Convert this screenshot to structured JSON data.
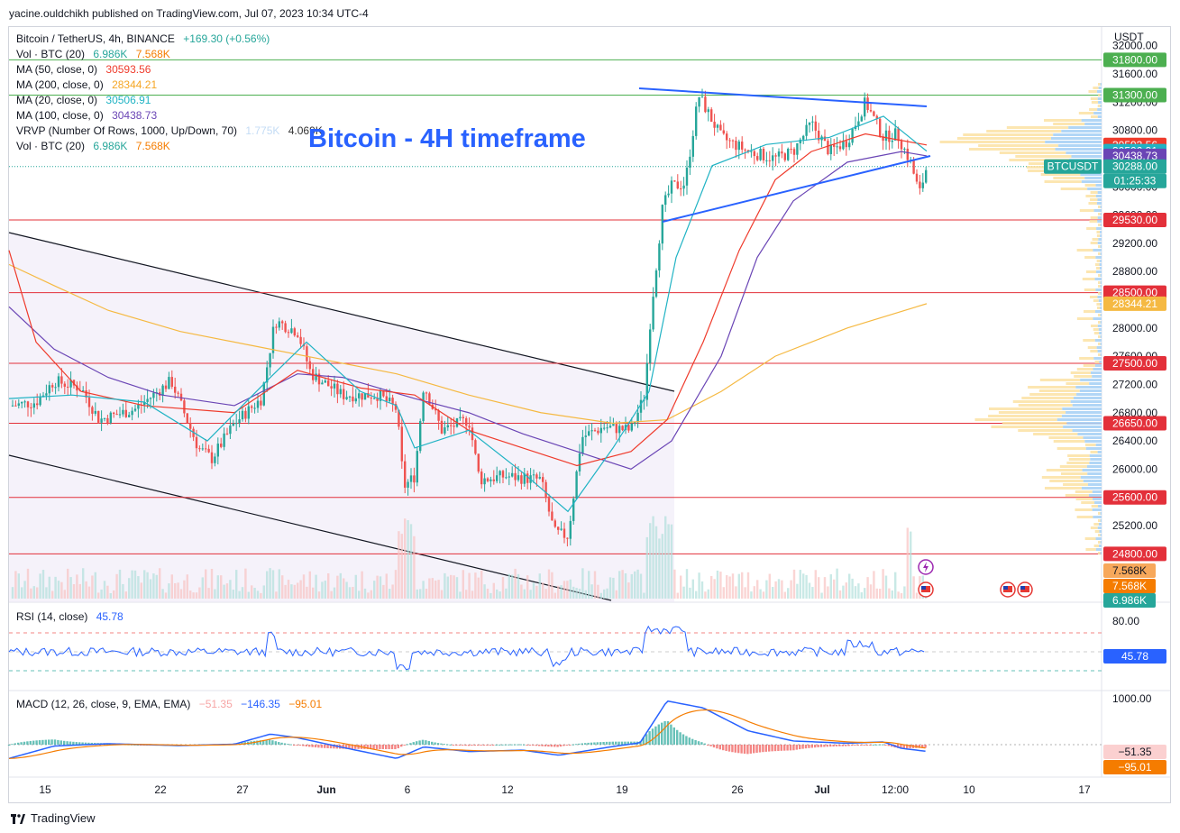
{
  "header": {
    "text": "yacine.ouldchikh published on TradingView.com, Jul 07, 2023 10:34 UTC-4"
  },
  "footer": {
    "brand": "TradingView"
  },
  "colors": {
    "up": "#26a69a",
    "down": "#ef5350",
    "ma50": "#ef3b2c",
    "ma200": "#f5b942",
    "ma20": "#20b3c4",
    "ma100": "#6a45b5",
    "hline": "#e3303a",
    "trend_blue": "#2962ff",
    "title_blue": "#2962ff"
  },
  "legend": {
    "symbol": "Bitcoin / TetherUS, 4h, BINANCE",
    "change": "+169.30 (+0.56%)",
    "vol_label": "Vol · BTC (20)",
    "vol_v1": "6.986K",
    "vol_v2": "7.568K",
    "ma50_label": "MA (50, close, 0)",
    "ma50_value": "30593.56",
    "ma200_label": "MA (200, close, 0)",
    "ma200_value": "28344.21",
    "ma20_label": "MA (20, close, 0)",
    "ma20_value": "30506.91",
    "ma100_label": "MA (100, close, 0)",
    "ma100_value": "30438.73",
    "vrvp_label": "VRVP (Number Of Rows, 1000, Up/Down, 70)",
    "vrvp_v1": "1.775K",
    "vrvp_v2": "4.069K",
    "vol2_label": "Vol · BTC (20)",
    "vol2_v1": "6.986K",
    "vol2_v2": "7.568K"
  },
  "annotation": {
    "title": "Bitcoin - 4H timeframe"
  },
  "currency": "USDT",
  "rsi": {
    "label": "RSI (14, close)",
    "value": "45.78",
    "levels": [
      "80.00",
      "45.78"
    ]
  },
  "macd": {
    "label": "MACD (12, 26, close, 9, EMA, EMA)",
    "hist": "−51.35",
    "macd": "−146.35",
    "signal": "−95.01",
    "axis_top": "1000.00",
    "tag_hist": "−51.35",
    "tag_signal": "−95.01"
  },
  "chart_data": {
    "type": "candlestick",
    "title": "Bitcoin - 4H timeframe",
    "symbol": "BTCUSDT",
    "last_price": "30288.00",
    "countdown": "01:25:33",
    "y_ticks": [
      32000,
      31600,
      31200,
      30800,
      30400,
      30000,
      29600,
      29200,
      28800,
      28400,
      28000,
      27600,
      27200,
      26800,
      26400,
      26000,
      25600,
      25200
    ],
    "ylim": [
      24700,
      32200
    ],
    "x_ticks": [
      "15",
      "22",
      "27",
      "Jun",
      "6",
      "12",
      "19",
      "26",
      "Jul",
      "12:00",
      "10",
      "17"
    ],
    "horizontal_levels": [
      31800,
      31300,
      29530,
      28500,
      27500,
      26650,
      25600,
      24800
    ],
    "price_tags": [
      {
        "label": "31800.00",
        "value": 31800,
        "color": "#4caf50"
      },
      {
        "label": "31300.00",
        "value": 31300,
        "color": "#4caf50"
      },
      {
        "label": "30593.56",
        "value": 30593.56,
        "color": "#ef3b2c"
      },
      {
        "label": "30506.91",
        "value": 30506.91,
        "color": "#20b3c4"
      },
      {
        "label": "30438.73",
        "value": 30438.73,
        "color": "#6a45b5"
      },
      {
        "label": "30288.00",
        "value": 30288,
        "color": "#26a69a"
      },
      {
        "label": "29530.00",
        "value": 29530,
        "color": "#e3303a"
      },
      {
        "label": "28500.00",
        "value": 28500,
        "color": "#e3303a"
      },
      {
        "label": "28344.21",
        "value": 28344.21,
        "color": "#f5b942"
      },
      {
        "label": "27500.00",
        "value": 27500,
        "color": "#e3303a"
      },
      {
        "label": "26650.00",
        "value": 26650,
        "color": "#e3303a"
      },
      {
        "label": "25600.00",
        "value": 25600,
        "color": "#e3303a"
      },
      {
        "label": "24800.00",
        "value": 24800,
        "color": "#e3303a"
      }
    ],
    "volume_tags": [
      "7.568K",
      "7.568K",
      "6.986K"
    ]
  }
}
